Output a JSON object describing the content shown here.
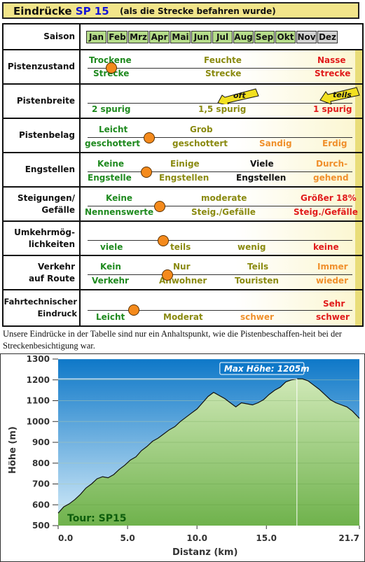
{
  "title": {
    "prefix": "Eindrücke",
    "sp": "SP 15",
    "subtitle": "(als die Strecke befahren wurde)"
  },
  "table": {
    "season": {
      "label": "Saison",
      "months": [
        {
          "name": "Jan",
          "active": true
        },
        {
          "name": "Feb",
          "active": true
        },
        {
          "name": "Mrz",
          "active": true
        },
        {
          "name": "Apr",
          "active": true
        },
        {
          "name": "Mai",
          "active": true
        },
        {
          "name": "Jun",
          "active": true
        },
        {
          "name": "Jul",
          "active": true
        },
        {
          "name": "Aug",
          "active": true
        },
        {
          "name": "Sep",
          "active": true
        },
        {
          "name": "Okt",
          "active": true
        },
        {
          "name": "Nov",
          "active": false
        },
        {
          "name": "Dez",
          "active": false
        }
      ]
    },
    "rows": [
      {
        "id": "pistenzustand",
        "label": "Pistenzustand",
        "cells": [
          [
            "Trockene",
            "Strecke"
          ],
          [
            "Feuchte",
            "Strecke"
          ],
          [
            "Nasse",
            "Strecke"
          ]
        ]
      },
      {
        "id": "pistenbreite",
        "label": "Pistenbreite",
        "cells": [
          [
            "2 spurig"
          ],
          [
            "1,5 spurig"
          ],
          [
            "1 spurig"
          ]
        ],
        "arrows": [
          "oft",
          "teils"
        ]
      },
      {
        "id": "pistenbelag",
        "label": "Pistenbelag",
        "cells": [
          [
            "Leicht",
            "geschottert"
          ],
          [
            "Grob",
            "geschottert"
          ],
          [
            "Sandig"
          ],
          [
            "Erdig"
          ]
        ]
      },
      {
        "id": "engstellen",
        "label": "Engstellen",
        "cells": [
          [
            "Keine",
            "Engstelle"
          ],
          [
            "Einige",
            "Engstellen"
          ],
          [
            "Viele",
            "Engstellen"
          ],
          [
            "Durch-",
            "gehend"
          ]
        ]
      },
      {
        "id": "steigungen",
        "label_lines": [
          "Steigungen/",
          "Gefälle"
        ],
        "cells": [
          [
            "Keine",
            "Nennenswerte"
          ],
          [
            "moderate",
            "Steig./Gefälle"
          ],
          [
            "Größer 18%",
            "Steig./Gefälle"
          ]
        ]
      },
      {
        "id": "umkehr",
        "label_lines": [
          "Umkehrmög-",
          "lichkeiten"
        ],
        "cells": [
          [
            "viele"
          ],
          [
            "teils"
          ],
          [
            "wenig"
          ],
          [
            "keine"
          ]
        ]
      },
      {
        "id": "verkehr",
        "label_lines": [
          "Verkehr",
          "auf Route"
        ],
        "cells": [
          [
            "Kein",
            "Verkehr"
          ],
          [
            "Nur",
            "Anwohner"
          ],
          [
            "Teils",
            "Touristen"
          ],
          [
            "Immer",
            "wieder"
          ]
        ]
      },
      {
        "id": "fahrtech",
        "label_lines": [
          "Fahrtechnischer",
          "Eindruck"
        ],
        "cells": [
          [
            "Leicht"
          ],
          [
            "Moderat"
          ],
          [
            "schwer"
          ],
          [
            "Sehr",
            "schwer"
          ]
        ]
      }
    ]
  },
  "caption": "Unsere Eindrücke in der Tabelle sind nur ein Anhaltspunkt, wie die Pistenbeschaffen-heit bei der Streckenbesichtigung war.",
  "chart_data": {
    "type": "area",
    "xlabel": "Distanz  (km)",
    "ylabel": "Höhe  (m)",
    "xlim": [
      0,
      21.7
    ],
    "ylim": [
      500,
      1300
    ],
    "xticks": [
      "0.0",
      "5.0",
      "10.0",
      "15.0",
      "21.7"
    ],
    "yticks": [
      "500",
      "600",
      "700",
      "800",
      "900",
      "1000",
      "1100",
      "1200",
      "1300"
    ],
    "annotation": "Max Höhe: 1205m",
    "tour_label": "Tour: SP15",
    "colors": {
      "sky_top": "#0e78c8",
      "sky_bottom": "#d8eefa",
      "fill_top": "#cfe8b6",
      "fill_bottom": "#6fb24c",
      "line": "#111111"
    },
    "x": [
      0,
      0.4,
      0.8,
      1.2,
      1.6,
      2.0,
      2.4,
      2.8,
      3.2,
      3.6,
      4.0,
      4.4,
      4.8,
      5.2,
      5.6,
      6.0,
      6.4,
      6.8,
      7.2,
      7.6,
      8.0,
      8.4,
      8.8,
      9.2,
      9.6,
      10.0,
      10.4,
      10.8,
      11.2,
      11.6,
      12.0,
      12.4,
      12.8,
      13.2,
      13.6,
      14.0,
      14.4,
      14.8,
      15.2,
      15.6,
      16.0,
      16.4,
      16.8,
      17.2,
      17.6,
      18.0,
      18.4,
      18.8,
      19.2,
      19.6,
      20.0,
      20.4,
      20.8,
      21.2,
      21.7
    ],
    "y": [
      560,
      590,
      605,
      625,
      650,
      680,
      700,
      725,
      735,
      730,
      745,
      770,
      790,
      815,
      830,
      860,
      880,
      905,
      920,
      940,
      960,
      975,
      1000,
      1020,
      1040,
      1060,
      1090,
      1120,
      1140,
      1125,
      1110,
      1090,
      1070,
      1090,
      1085,
      1080,
      1090,
      1105,
      1130,
      1150,
      1165,
      1190,
      1200,
      1205,
      1205,
      1195,
      1175,
      1155,
      1130,
      1105,
      1090,
      1080,
      1070,
      1050,
      1015
    ]
  }
}
